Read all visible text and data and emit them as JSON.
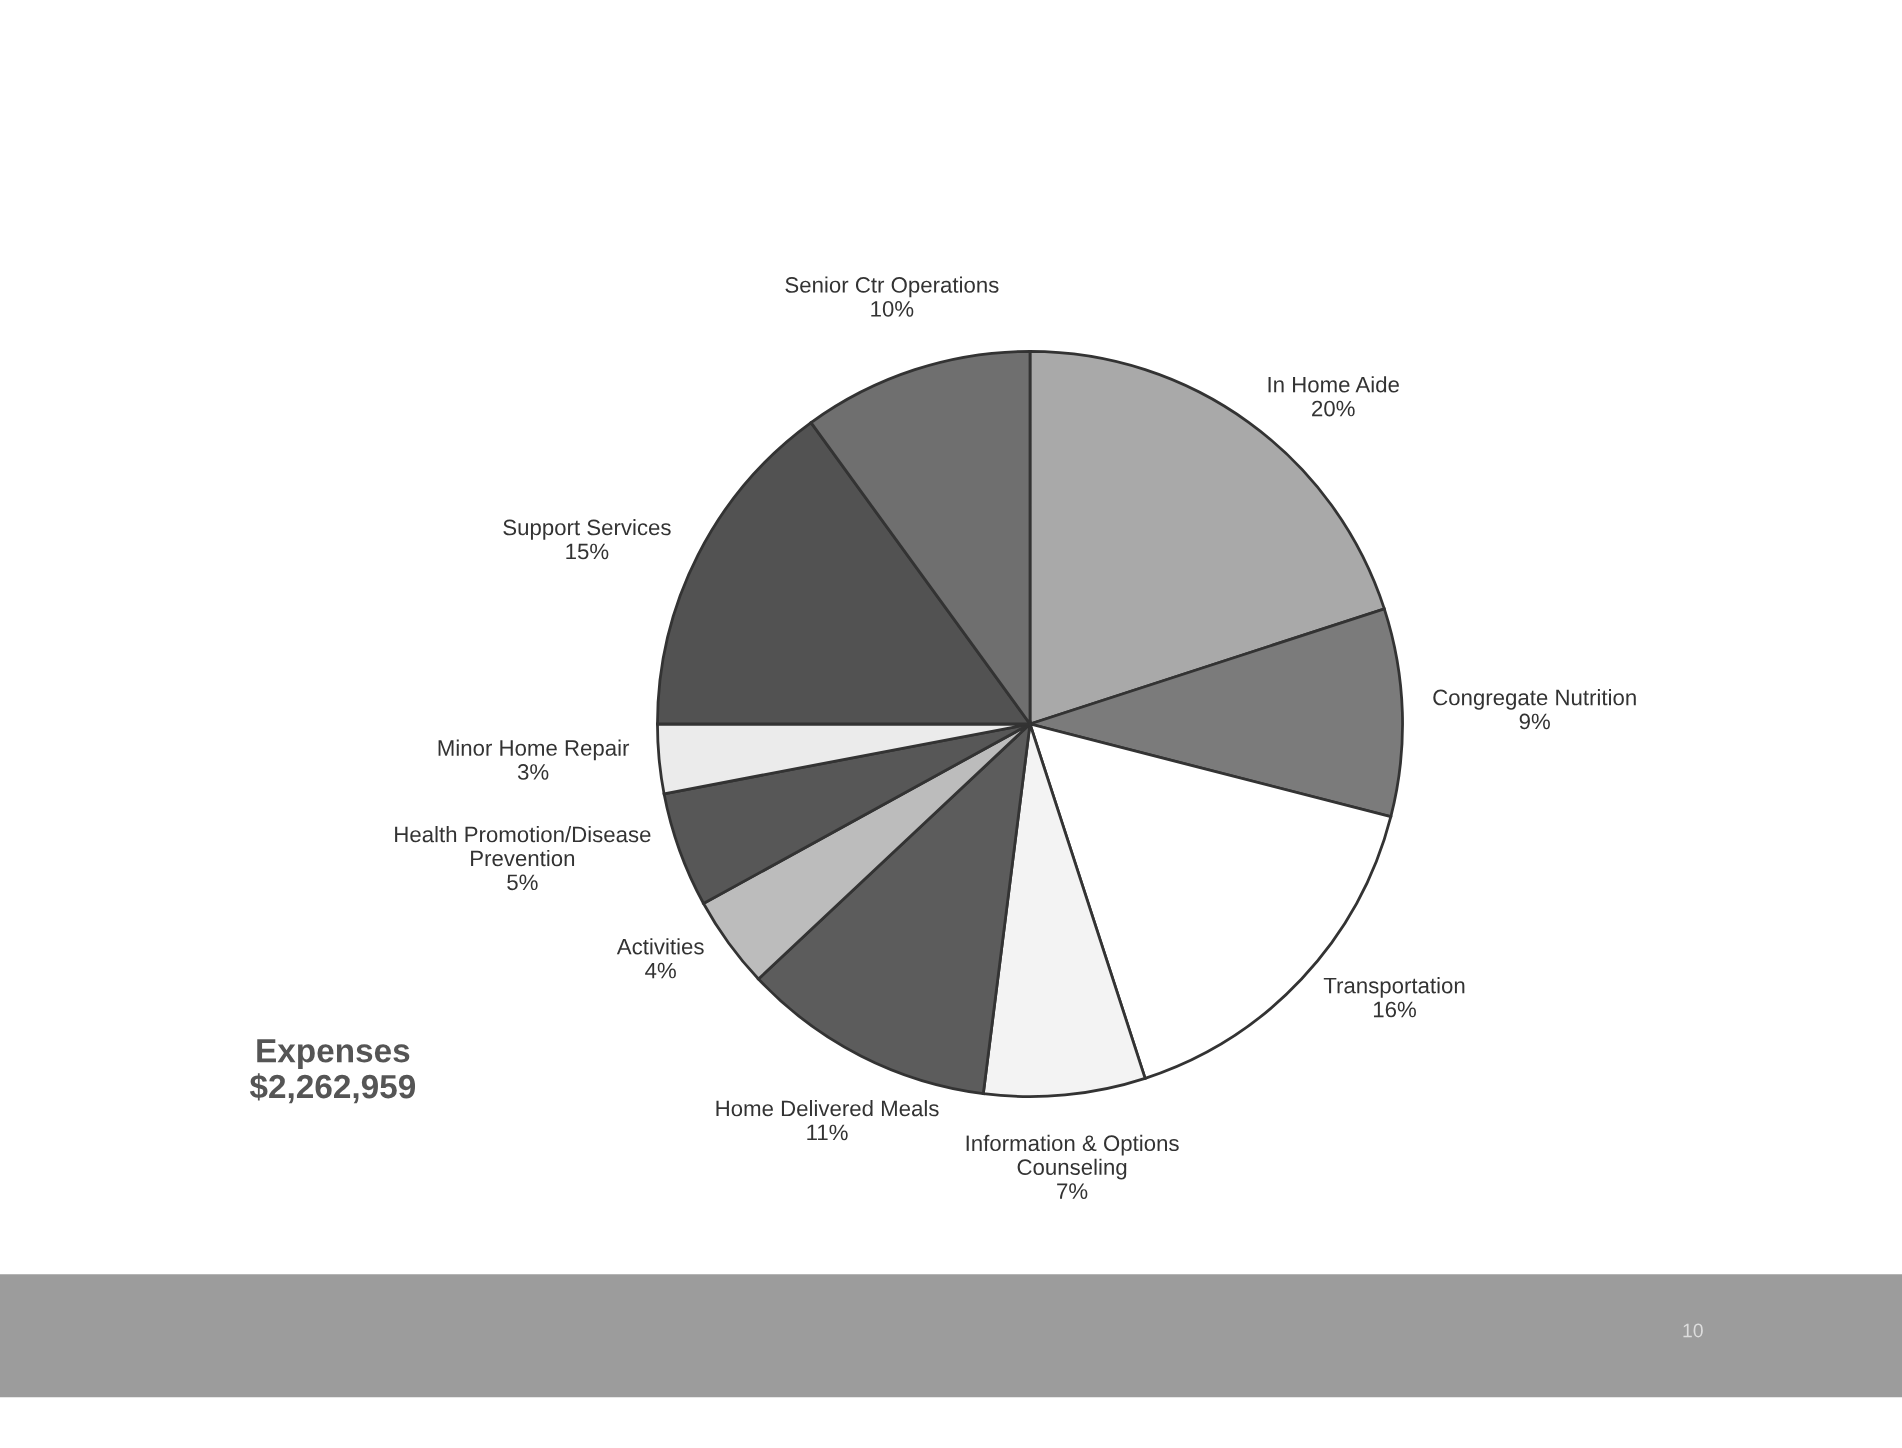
{
  "chart_data": {
    "type": "pie",
    "categories": [
      "In Home Aide",
      "Congregate Nutrition",
      "Transportation",
      "Information & Options\nCounseling",
      "Home Delivered Meals",
      "Activities",
      "Health Promotion/Disease\nPrevention",
      "Minor Home Repair",
      "Support Services",
      "Senior Ctr Operations"
    ],
    "values": [
      20,
      9,
      16,
      7,
      11,
      4,
      5,
      3,
      15,
      10
    ],
    "value_labels": [
      "20%",
      "9%",
      "16%",
      "7%",
      "11%",
      "4%",
      "5%",
      "3%",
      "15%",
      "10%"
    ],
    "colors": [
      "#a9a9a9",
      "#7b7b7b",
      "#ffffff",
      "#f3f3f3",
      "#5c5c5c",
      "#bcbcbc",
      "#575757",
      "#ebebeb",
      "#525252",
      "#6f6f6f"
    ],
    "annotations": [
      "Expenses\n$2,262,959",
      "10"
    ]
  }
}
